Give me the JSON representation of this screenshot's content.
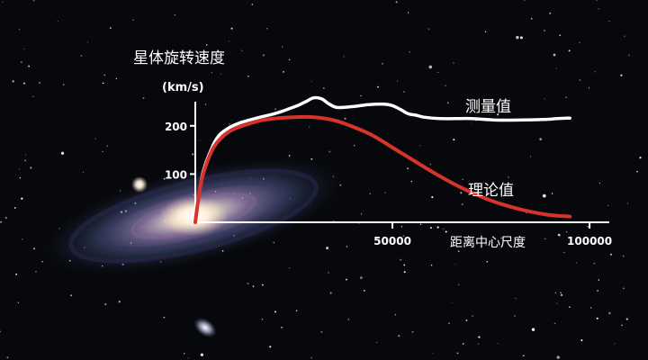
{
  "chart_data": {
    "type": "line",
    "ylabel": "星体旋转速度",
    "yunit": "(km/s)",
    "xlabel": "距离中心尺度",
    "xlim": [
      0,
      105000
    ],
    "ylim": [
      0,
      250
    ],
    "xticks": [
      50000,
      100000
    ],
    "yticks": [
      100,
      200
    ],
    "xtick_labels": [
      "50000",
      "100000"
    ],
    "ytick_labels": [
      "100",
      "200"
    ],
    "grid": false,
    "series": [
      {
        "name": "测量值",
        "color": "#ffffff",
        "x": [
          0,
          1000,
          2000,
          4000,
          6000,
          9000,
          12000,
          16000,
          20000,
          22000,
          24000,
          26000,
          28000,
          30000,
          32000,
          34000,
          36000,
          40000,
          44000,
          48000,
          50000,
          52000,
          54000,
          56000,
          58000,
          62000,
          66000,
          70000,
          76000,
          82000,
          88000,
          92000,
          95000
        ],
        "y": [
          0,
          60,
          105,
          150,
          180,
          198,
          208,
          217,
          225,
          230,
          236,
          242,
          250,
          258,
          256,
          245,
          238,
          240,
          244,
          245,
          242,
          234,
          225,
          222,
          218,
          215,
          215,
          215,
          212,
          212,
          213,
          215,
          216
        ]
      },
      {
        "name": "理论值",
        "color": "#d8332a",
        "x": [
          0,
          1000,
          2000,
          4000,
          6000,
          9000,
          12000,
          16000,
          20000,
          25000,
          30000,
          35000,
          40000,
          45000,
          50000,
          55000,
          60000,
          65000,
          70000,
          75000,
          80000,
          85000,
          90000,
          95000
        ],
        "y": [
          0,
          60,
          100,
          145,
          170,
          190,
          200,
          210,
          215,
          218,
          218,
          212,
          198,
          180,
          155,
          130,
          105,
          82,
          62,
          45,
          32,
          22,
          15,
          12
        ]
      }
    ]
  }
}
